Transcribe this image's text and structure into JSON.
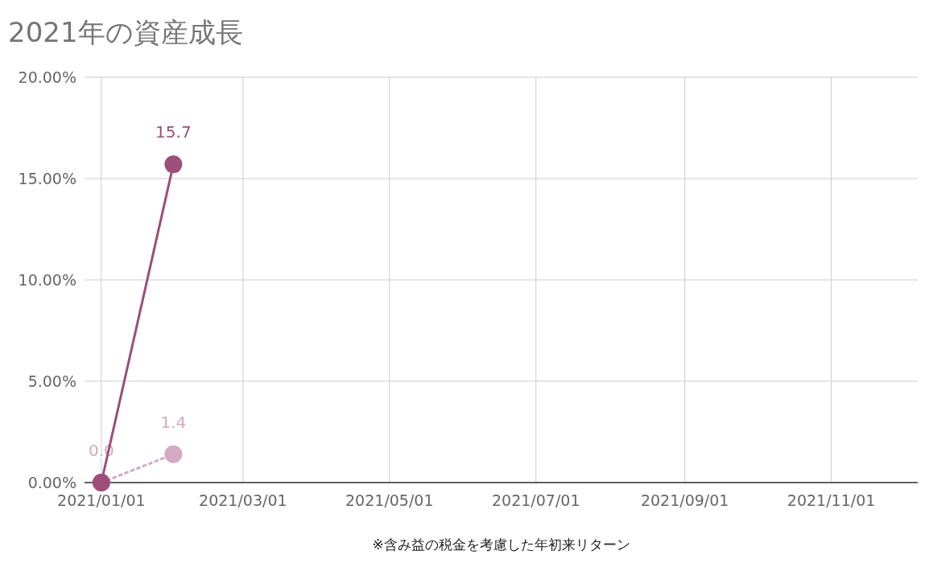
{
  "chart_data": {
    "type": "line",
    "title": "2021年の資産成長",
    "annotations": [
      "※含み益の税金を考慮した年初来リターン"
    ],
    "x": [
      "2021-01-01",
      "2021-01-31"
    ],
    "series": [
      {
        "color": "#9c4f78",
        "values": [
          0,
          15.7
        ],
        "line_style": "solid",
        "value_labels": [
          null,
          "15.7"
        ]
      },
      {
        "color": "#d3a9c4",
        "values": [
          0,
          1.4
        ],
        "line_style": "dotted",
        "value_labels": [
          "0.0",
          "1.4"
        ]
      }
    ],
    "xlim": [
      "2020-12-25",
      "2021-12-07"
    ],
    "xticks": [
      {
        "value": "2021-01-01",
        "label": "2021/01/01"
      },
      {
        "value": "2021-03-01",
        "label": "2021/03/01"
      },
      {
        "value": "2021-05-01",
        "label": "2021/05/01"
      },
      {
        "value": "2021-07-01",
        "label": "2021/07/01"
      },
      {
        "value": "2021-09-01",
        "label": "2021/09/01"
      },
      {
        "value": "2021-11-01",
        "label": "2021/11/01"
      }
    ],
    "ylim": [
      0,
      20
    ],
    "yticks": [
      {
        "value": 0,
        "label": "0.00%"
      },
      {
        "value": 5,
        "label": "5.00%"
      },
      {
        "value": 10,
        "label": "10.00%"
      },
      {
        "value": 15,
        "label": "15.00%"
      },
      {
        "value": 20,
        "label": "20.00%"
      }
    ],
    "grid": true,
    "marker": "circle"
  }
}
